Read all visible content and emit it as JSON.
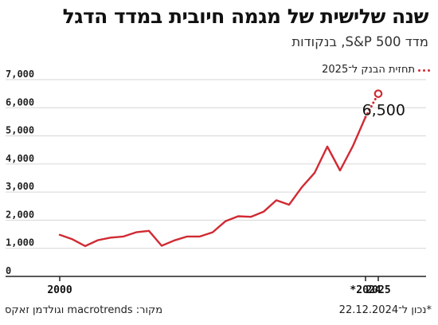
{
  "title": "שנה שלישית של מגמה חיובית במדד הדגל",
  "subtitle": "מדד S&P 500, בנקודות",
  "legend_label": "תחזית הבנק ל־2025",
  "footnote": "*נכון ל־22.12.2024",
  "source": "מקור: macrotrends וגולדמן זאקס",
  "colors": {
    "line": "#d12a33",
    "axis": "#222222",
    "grid": "#d6d6d6"
  },
  "chart_data": {
    "type": "line",
    "title": "שנה שלישית של מגמה חיובית במדד הדגל",
    "subtitle": "מדד S&P 500, בנקודות",
    "xlabel": "",
    "ylabel": "",
    "ylim": [
      0,
      7000
    ],
    "xlim": [
      2000,
      2025.5
    ],
    "y_ticks": [
      0,
      1000,
      2000,
      3000,
      4000,
      5000,
      6000,
      7000
    ],
    "y_tick_labels": [
      "0",
      "1,000",
      "2,000",
      "3,000",
      "4,000",
      "5,000",
      "6,000",
      "7,000"
    ],
    "x_ticks": [
      2000,
      2024,
      2025
    ],
    "x_tick_labels": [
      "2000",
      "*2024",
      "2025"
    ],
    "grid": "horizontal",
    "series": [
      {
        "style": "solid",
        "x": [
          2000,
          2001,
          2002,
          2003,
          2004,
          2005,
          2006,
          2007,
          2008,
          2009,
          2010,
          2011,
          2012,
          2013,
          2014,
          2015,
          2016,
          2017,
          2018,
          2019,
          2020,
          2021,
          2022,
          2023,
          2024
        ],
        "y": [
          1480,
          1320,
          1080,
          1290,
          1380,
          1420,
          1570,
          1620,
          1090,
          1280,
          1420,
          1420,
          1570,
          1960,
          2140,
          2120,
          2300,
          2710,
          2550,
          3170,
          3680,
          4620,
          3770,
          4630,
          5670
        ]
      },
      {
        "name": "תחזית הבנק ל־2025",
        "style": "dotted",
        "x": [
          2024,
          2025
        ],
        "y": [
          5670,
          6500
        ]
      }
    ],
    "annotations": [
      {
        "x": 2025,
        "y": 6500,
        "text": "6,500"
      }
    ]
  }
}
